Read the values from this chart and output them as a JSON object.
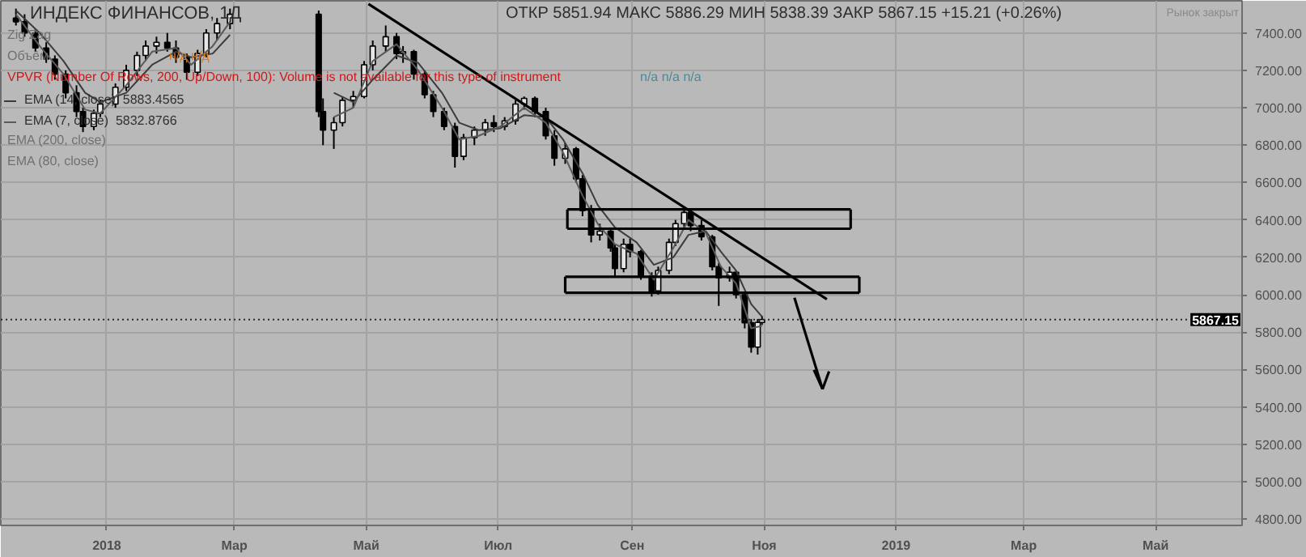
{
  "chart_data": {
    "type": "candlestick",
    "title": "ИНДЕКС ФИНАНСОВ, 1Д",
    "subtitle": "ОТКР 5851.94  МАКС 5886.29  МИН 5838.39  ЗАКР 5867.15   +15.21 (+0.26%)",
    "annotations": [
      "Zig Zag",
      "Объём",
      "VPVR (Number Of Rows, 200, Up/Down, 100): Volume is not available for this type of instrument",
      "EMA (200, close)",
      "EMA (80, close)",
      "Рынок закрыт",
      "н/д  н/д",
      "n/a  n/a  n/a"
    ],
    "x": [
      "2017-11-20",
      "2017-11-24",
      "2017-11-29",
      "2017-12-04",
      "2017-12-08",
      "2017-12-13",
      "2017-12-18",
      "2017-12-21",
      "2017-12-26",
      "2017-12-29",
      "2018-01-05",
      "2018-01-10",
      "2018-01-15",
      "2018-01-19",
      "2018-01-24",
      "2018-01-29",
      "2018-02-02",
      "2018-02-07",
      "2018-02-12",
      "2018-02-16",
      "2018-02-21",
      "2018-02-27",
      "2018-04-09",
      "2018-04-11",
      "2018-04-16",
      "2018-04-20",
      "2018-04-25",
      "2018-04-30",
      "2018-05-04",
      "2018-05-10",
      "2018-05-15",
      "2018-05-18",
      "2018-05-23",
      "2018-05-28",
      "2018-06-01",
      "2018-06-06",
      "2018-06-11",
      "2018-06-15",
      "2018-06-20",
      "2018-06-25",
      "2018-06-29",
      "2018-07-04",
      "2018-07-09",
      "2018-07-13",
      "2018-07-18",
      "2018-07-23",
      "2018-07-27",
      "2018-08-01",
      "2018-08-06",
      "2018-08-09",
      "2018-08-13",
      "2018-08-17",
      "2018-08-22",
      "2018-08-24",
      "2018-08-28",
      "2018-08-31",
      "2018-09-05",
      "2018-09-10",
      "2018-09-13",
      "2018-09-18",
      "2018-09-21",
      "2018-09-25",
      "2018-09-28",
      "2018-10-03",
      "2018-10-08",
      "2018-10-11",
      "2018-10-16",
      "2018-10-19",
      "2018-10-23",
      "2018-10-26",
      "2018-10-29",
      "2018-10-31"
    ],
    "ohlc": [
      [
        7480,
        7530,
        7440,
        7460
      ],
      [
        7460,
        7500,
        7380,
        7400
      ],
      [
        7400,
        7420,
        7300,
        7320
      ],
      [
        7320,
        7350,
        7240,
        7260
      ],
      [
        7260,
        7280,
        7150,
        7180
      ],
      [
        7180,
        7200,
        7050,
        7080
      ],
      [
        7080,
        7120,
        6950,
        6980
      ],
      [
        6980,
        7000,
        6870,
        6900
      ],
      [
        6900,
        6990,
        6880,
        6970
      ],
      [
        6970,
        7040,
        6950,
        7020
      ],
      [
        7020,
        7130,
        7000,
        7110
      ],
      [
        7110,
        7230,
        7090,
        7200
      ],
      [
        7200,
        7300,
        7170,
        7280
      ],
      [
        7280,
        7360,
        7250,
        7330
      ],
      [
        7330,
        7380,
        7290,
        7350
      ],
      [
        7350,
        7400,
        7300,
        7320
      ],
      [
        7320,
        7360,
        7240,
        7270
      ],
      [
        7270,
        7290,
        7150,
        7190
      ],
      [
        7190,
        7310,
        7170,
        7290
      ],
      [
        7290,
        7420,
        7270,
        7400
      ],
      [
        7400,
        7480,
        7360,
        7450
      ],
      [
        7450,
        7530,
        7420,
        7500
      ],
      [
        7500,
        7520,
        6950,
        6980
      ],
      [
        6980,
        7050,
        6800,
        6880
      ],
      [
        6880,
        6950,
        6780,
        6920
      ],
      [
        6920,
        7060,
        6900,
        7040
      ],
      [
        7040,
        7090,
        7000,
        7060
      ],
      [
        7060,
        7250,
        7050,
        7230
      ],
      [
        7230,
        7360,
        7200,
        7330
      ],
      [
        7330,
        7440,
        7300,
        7380
      ],
      [
        7380,
        7400,
        7260,
        7290
      ],
      [
        7290,
        7330,
        7240,
        7300
      ],
      [
        7300,
        7310,
        7150,
        7180
      ],
      [
        7180,
        7200,
        7050,
        7070
      ],
      [
        7070,
        7090,
        6950,
        6980
      ],
      [
        6980,
        7000,
        6880,
        6900
      ],
      [
        6900,
        6920,
        6680,
        6740
      ],
      [
        6740,
        6860,
        6720,
        6840
      ],
      [
        6840,
        6900,
        6800,
        6880
      ],
      [
        6880,
        6940,
        6850,
        6920
      ],
      [
        6920,
        6960,
        6870,
        6900
      ],
      [
        6900,
        6950,
        6880,
        6930
      ],
      [
        6930,
        7040,
        6910,
        7020
      ],
      [
        7020,
        7060,
        6990,
        7050
      ],
      [
        7050,
        7060,
        6950,
        6980
      ],
      [
        6980,
        7000,
        6830,
        6850
      ],
      [
        6850,
        6880,
        6690,
        6730
      ],
      [
        6730,
        6810,
        6700,
        6780
      ],
      [
        6780,
        6790,
        6600,
        6620
      ],
      [
        6620,
        6640,
        6420,
        6450
      ],
      [
        6450,
        6480,
        6280,
        6320
      ],
      [
        6320,
        6380,
        6290,
        6340
      ],
      [
        6340,
        6360,
        6230,
        6250
      ],
      [
        6250,
        6270,
        6100,
        6140
      ],
      [
        6140,
        6300,
        6120,
        6270
      ],
      [
        6270,
        6300,
        6200,
        6230
      ],
      [
        6230,
        6240,
        6080,
        6100
      ],
      [
        6100,
        6120,
        5990,
        6020
      ],
      [
        6020,
        6150,
        6000,
        6130
      ],
      [
        6130,
        6300,
        6110,
        6280
      ],
      [
        6280,
        6400,
        6260,
        6380
      ],
      [
        6380,
        6470,
        6350,
        6440
      ],
      [
        6440,
        6450,
        6340,
        6370
      ],
      [
        6370,
        6400,
        6290,
        6310
      ],
      [
        6310,
        6320,
        6130,
        6150
      ],
      [
        6150,
        6170,
        5940,
        6090
      ],
      [
        6090,
        6150,
        6070,
        6120
      ],
      [
        6120,
        6130,
        5980,
        6000
      ],
      [
        6000,
        6010,
        5820,
        5850
      ],
      [
        5850,
        5870,
        5690,
        5720
      ],
      [
        5720,
        5870,
        5680,
        5851.94
      ],
      [
        5851.94,
        5886.29,
        5838.39,
        5867.15
      ]
    ],
    "series": [
      {
        "name": "EMA (14, close)  5883.4565",
        "type": "line",
        "color": "#3c3c3c",
        "x": [
          "2018-04-16",
          "2018-04-25",
          "2018-05-04",
          "2018-05-15",
          "2018-05-25",
          "2018-06-05",
          "2018-06-13",
          "2018-06-22",
          "2018-07-02",
          "2018-07-13",
          "2018-07-23",
          "2018-07-31",
          "2018-08-09",
          "2018-08-16",
          "2018-08-24",
          "2018-09-03",
          "2018-09-11",
          "2018-09-20",
          "2018-09-27",
          "2018-10-05",
          "2018-10-12",
          "2018-10-19",
          "2018-10-26",
          "2018-10-31"
        ],
        "values": [
          7080,
          7030,
          7150,
          7280,
          7240,
          7080,
          6920,
          6880,
          6890,
          6960,
          6950,
          6830,
          6650,
          6480,
          6360,
          6280,
          6160,
          6200,
          6320,
          6340,
          6230,
          6130,
          5950,
          5883
        ]
      },
      {
        "name": "EMA (7, close)  5832.8766",
        "type": "line",
        "color": "#5a5a5a",
        "x": [
          "2018-04-16",
          "2018-04-25",
          "2018-05-04",
          "2018-05-15",
          "2018-05-25",
          "2018-06-05",
          "2018-06-13",
          "2018-06-22",
          "2018-07-02",
          "2018-07-13",
          "2018-07-23",
          "2018-07-31",
          "2018-08-09",
          "2018-08-16",
          "2018-08-24",
          "2018-09-03",
          "2018-09-11",
          "2018-09-20",
          "2018-09-27",
          "2018-10-05",
          "2018-10-12",
          "2018-10-19",
          "2018-10-26",
          "2018-10-31"
        ],
        "values": [
          6950,
          7000,
          7250,
          7340,
          7200,
          7000,
          6830,
          6850,
          6900,
          7000,
          6920,
          6760,
          6530,
          6380,
          6270,
          6220,
          6080,
          6250,
          6400,
          6330,
          6150,
          6060,
          5820,
          5833
        ]
      },
      {
        "type": "line",
        "color": "#3c3c3c",
        "x": [
          "2017-11-20",
          "2017-12-01",
          "2017-12-12",
          "2017-12-22",
          "2017-12-29",
          "2018-01-10",
          "2018-01-22",
          "2018-02-02",
          "2018-02-09",
          "2018-02-19",
          "2018-02-27"
        ],
        "values": [
          7520,
          7400,
          7250,
          7080,
          7030,
          7080,
          7230,
          7300,
          7270,
          7290,
          7390
        ]
      },
      {
        "type": "line",
        "color": "#5a5a5a",
        "x": [
          "2017-11-20",
          "2017-12-01",
          "2017-12-12",
          "2017-12-22",
          "2017-12-29",
          "2018-01-10",
          "2018-01-22",
          "2018-02-02",
          "2018-02-09",
          "2018-02-19",
          "2018-02-27"
        ],
        "values": [
          7500,
          7330,
          7180,
          6990,
          6970,
          7120,
          7300,
          7320,
          7230,
          7330,
          7460
        ]
      },
      {
        "type": "line",
        "color": "#000000",
        "x": [
          "2018-05-02",
          "2018-11-30"
        ],
        "values": [
          7555,
          5976
        ]
      },
      {
        "type": "line",
        "color": "#000000",
        "x": [
          "2018-08-02",
          "2018-12-11"
        ],
        "values": [
          6456,
          6456
        ]
      },
      {
        "type": "line",
        "color": "#000000",
        "x": [
          "2018-08-02",
          "2018-12-11"
        ],
        "values": [
          6353,
          6353
        ]
      },
      {
        "type": "line",
        "color": "#000000",
        "x": [
          "2018-08-01",
          "2018-12-15"
        ],
        "values": [
          6096,
          6096
        ]
      },
      {
        "type": "line",
        "color": "#000000",
        "x": [
          "2018-08-01",
          "2018-12-15"
        ],
        "values": [
          6010,
          6010
        ]
      },
      {
        "type": "line",
        "color": "#000000",
        "x": [
          "2018-08-02",
          "2018-08-02"
        ],
        "values": [
          6456,
          6353
        ]
      },
      {
        "type": "line",
        "color": "#000000",
        "x": [
          "2018-12-11",
          "2018-12-11"
        ],
        "values": [
          6456,
          6353
        ]
      },
      {
        "type": "line",
        "color": "#000000",
        "x": [
          "2018-08-01",
          "2018-08-01"
        ],
        "values": [
          6096,
          6010
        ]
      },
      {
        "type": "line",
        "color": "#000000",
        "x": [
          "2018-12-15",
          "2018-12-15"
        ],
        "values": [
          6096,
          6010
        ]
      },
      {
        "type": "line",
        "color": "#000000",
        "x": [
          "2018-11-15",
          "2018-11-28"
        ],
        "values": [
          5984,
          5495
        ]
      },
      {
        "type": "line",
        "color": "#000000",
        "x": [
          "2018-11-24",
          "2018-11-28"
        ],
        "values": [
          5598,
          5495
        ]
      },
      {
        "type": "line",
        "color": "#000000",
        "x": [
          "2018-11-28",
          "2018-12-01"
        ],
        "values": [
          5495,
          5590
        ]
      }
    ],
    "xlim": [
      "2017-11-13",
      "2019-06-10"
    ],
    "ylim": [
      4766,
      7572
    ],
    "xticks": [
      {
        "value": "2018-01-01",
        "label": "2018"
      },
      {
        "value": "2018-03-01",
        "label": "Мар"
      },
      {
        "value": "2018-05-01",
        "label": "Май"
      },
      {
        "value": "2018-07-01",
        "label": "Июл"
      },
      {
        "value": "2018-09-01",
        "label": "Сен"
      },
      {
        "value": "2018-11-01",
        "label": "Ноя"
      },
      {
        "value": "2019-01-01",
        "label": "2019"
      },
      {
        "value": "2019-03-01",
        "label": "Мар"
      },
      {
        "value": "2019-05-01",
        "label": "Май"
      }
    ],
    "yticks": [
      {
        "value": 4800,
        "label": "4800.00"
      },
      {
        "value": 5000,
        "label": "5000.00"
      },
      {
        "value": 5200,
        "label": "5200.00"
      },
      {
        "value": 5400,
        "label": "5400.00"
      },
      {
        "value": 5600,
        "label": "5600.00"
      },
      {
        "value": 5800,
        "label": "5800.00"
      },
      {
        "value": 6000,
        "label": "6000.00"
      },
      {
        "value": 6200,
        "label": "6200.00"
      },
      {
        "value": 6400,
        "label": "6400.00"
      },
      {
        "value": 6600,
        "label": "6600.00"
      },
      {
        "value": 6800,
        "label": "6800.00"
      },
      {
        "value": 7000,
        "label": "7000.00"
      },
      {
        "value": 7200,
        "label": "7200.00"
      },
      {
        "value": 7400,
        "label": "7400.00"
      }
    ],
    "ref_lines": [
      {
        "axis": "y",
        "value": 5867.15,
        "label": "5867.15",
        "color": "#2a2a2a",
        "line_style": "dotted"
      }
    ],
    "grid": true,
    "legend": "top left"
  }
}
